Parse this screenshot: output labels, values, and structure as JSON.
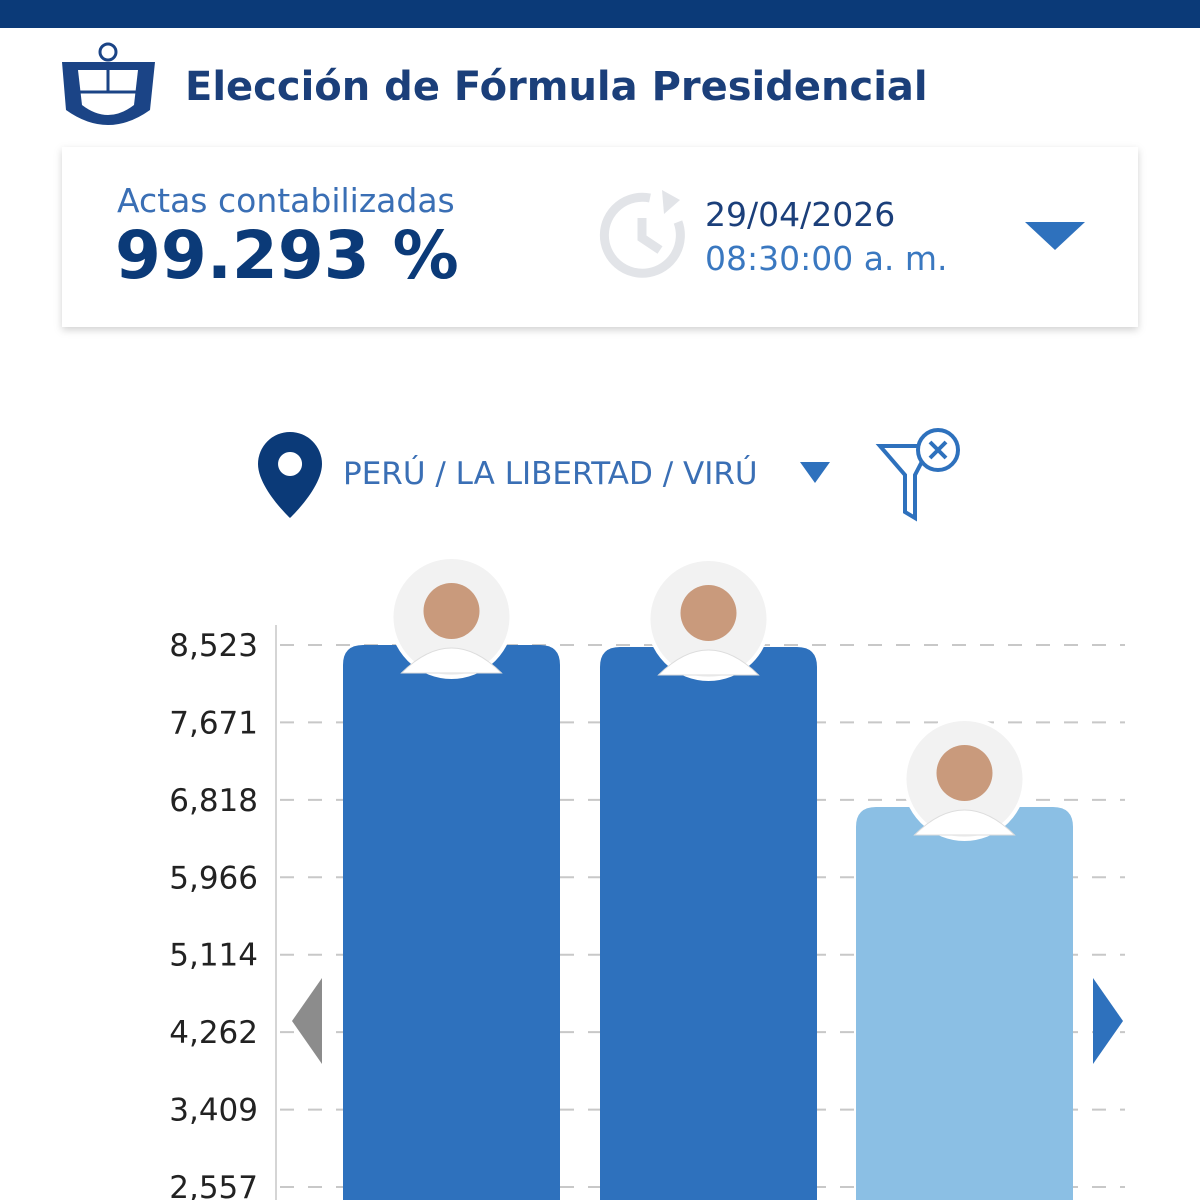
{
  "header": {
    "title": "Elección de Fórmula Presidencial"
  },
  "status": {
    "label": "Actas contabilizadas",
    "percent": "99.293 %",
    "date": "29/04/2026",
    "time": "08:30:00 a. m."
  },
  "location": {
    "path": "PERÚ / LA LIBERTAD / VIRÚ"
  },
  "chart_data": {
    "type": "bar",
    "categories": [
      null,
      null,
      null
    ],
    "values": [
      8523,
      8501,
      6740
    ],
    "colors": [
      "#2e71bd",
      "#2e71bd",
      "#8bbfe4"
    ],
    "ylim": [
      2414,
      8743
    ],
    "yticks": [
      {
        "value": 8523,
        "label": "8,523"
      },
      {
        "value": 7671,
        "label": "7,671"
      },
      {
        "value": 6818,
        "label": "6,818"
      },
      {
        "value": 5966,
        "label": "5,966"
      },
      {
        "value": 5114,
        "label": "5,114"
      },
      {
        "value": 4262,
        "label": "4,262"
      },
      {
        "value": 3409,
        "label": "3,409"
      },
      {
        "value": 2557,
        "label": "2,557"
      }
    ],
    "grid": true
  }
}
